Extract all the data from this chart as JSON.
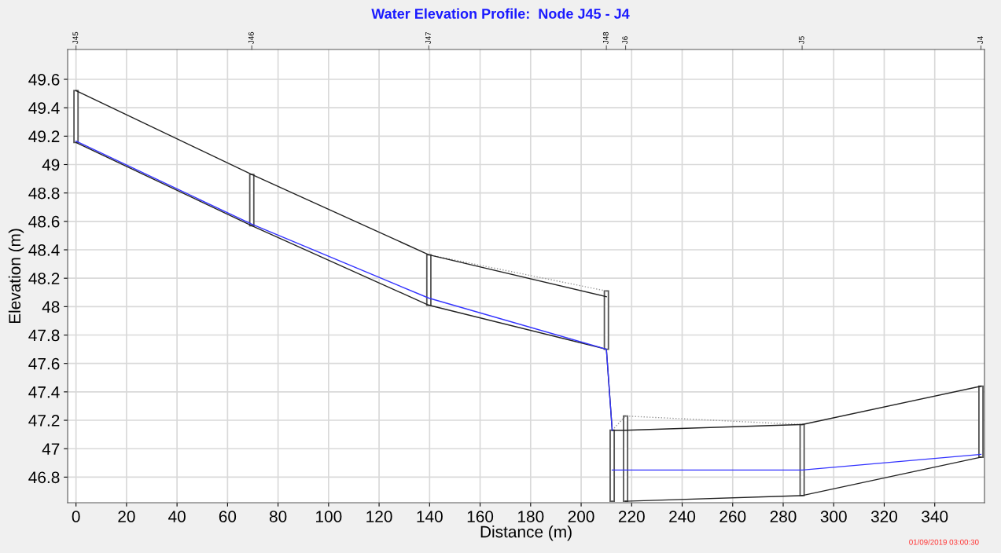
{
  "chart_data": {
    "type": "line",
    "title": "Water Elevation Profile:  Node J45 - J4",
    "xlabel": "Distance (m)",
    "ylabel": "Elevation (m)",
    "xlim": [
      -3.3,
      359.7
    ],
    "xticks": [
      0,
      20,
      40,
      60,
      80,
      100,
      120,
      140,
      160,
      180,
      200,
      220,
      240,
      260,
      280,
      300,
      320,
      340
    ],
    "ylim": [
      46.62,
      49.81
    ],
    "yticks": [
      46.8,
      47,
      47.2,
      47.4,
      47.6,
      47.8,
      48,
      48.2,
      48.4,
      48.6,
      48.8,
      49,
      49.2,
      49.4,
      49.6
    ],
    "grid": true,
    "legend": false,
    "marker": "none",
    "annotations": [
      "J45",
      "J46",
      "J47",
      "J48",
      "J6",
      "J5",
      "J4",
      "01/09/2019 03:00:30"
    ],
    "series": [
      {
        "type": "bar",
        "color": "#555555",
        "x": [
          0,
          69.6,
          139.7,
          210.0,
          217.6,
          287.5,
          358.3
        ],
        "base": [
          49.155,
          48.57,
          48.01,
          47.7,
          46.63,
          46.67,
          46.94
        ],
        "values": [
          0.365,
          0.36,
          0.355,
          0.41,
          0.6,
          0.5,
          0.5
        ]
      },
      {
        "type": "bar",
        "color": "#555555",
        "x": [
          212.3
        ],
        "base": [
          46.63
        ],
        "values": [
          0.5
        ]
      },
      {
        "line_style": "dotted",
        "color": "#999999",
        "x": [
          139.7,
          210.0
        ],
        "values": [
          48.365,
          48.11
        ]
      },
      {
        "line_style": "dotted",
        "color": "#999999",
        "x": [
          212.3,
          217.6,
          287.5
        ],
        "values": [
          47.13,
          47.23,
          47.17
        ]
      },
      {
        "line_style": "solid",
        "color": "#222222",
        "x": [
          0,
          69.6,
          139.7,
          210.0
        ],
        "values": [
          49.52,
          48.93,
          48.365,
          48.07
        ]
      },
      {
        "line_style": "solid",
        "color": "#222222",
        "x": [
          212.3,
          217.6,
          287.5,
          358.3
        ],
        "values": [
          47.13,
          47.13,
          47.17,
          47.44
        ]
      },
      {
        "line_style": "solid",
        "color": "#222222",
        "x": [
          0,
          69.6,
          139.7,
          210.0,
          212.3
        ],
        "values": [
          49.155,
          48.57,
          48.01,
          47.7,
          47.13
        ]
      },
      {
        "line_style": "solid",
        "color": "#222222",
        "x": [
          217.6,
          287.5,
          358.3
        ],
        "values": [
          46.63,
          46.67,
          46.94
        ]
      },
      {
        "line_style": "solid",
        "color": "#3333ff",
        "x": [
          0,
          69.6,
          139.7,
          210.0,
          212.3
        ],
        "values": [
          49.165,
          48.58,
          48.06,
          47.7,
          47.13
        ]
      },
      {
        "line_style": "solid",
        "color": "#3333ff",
        "x": [
          212.3,
          287.5,
          358.3
        ],
        "values": [
          46.85,
          46.85,
          46.96
        ]
      }
    ]
  }
}
